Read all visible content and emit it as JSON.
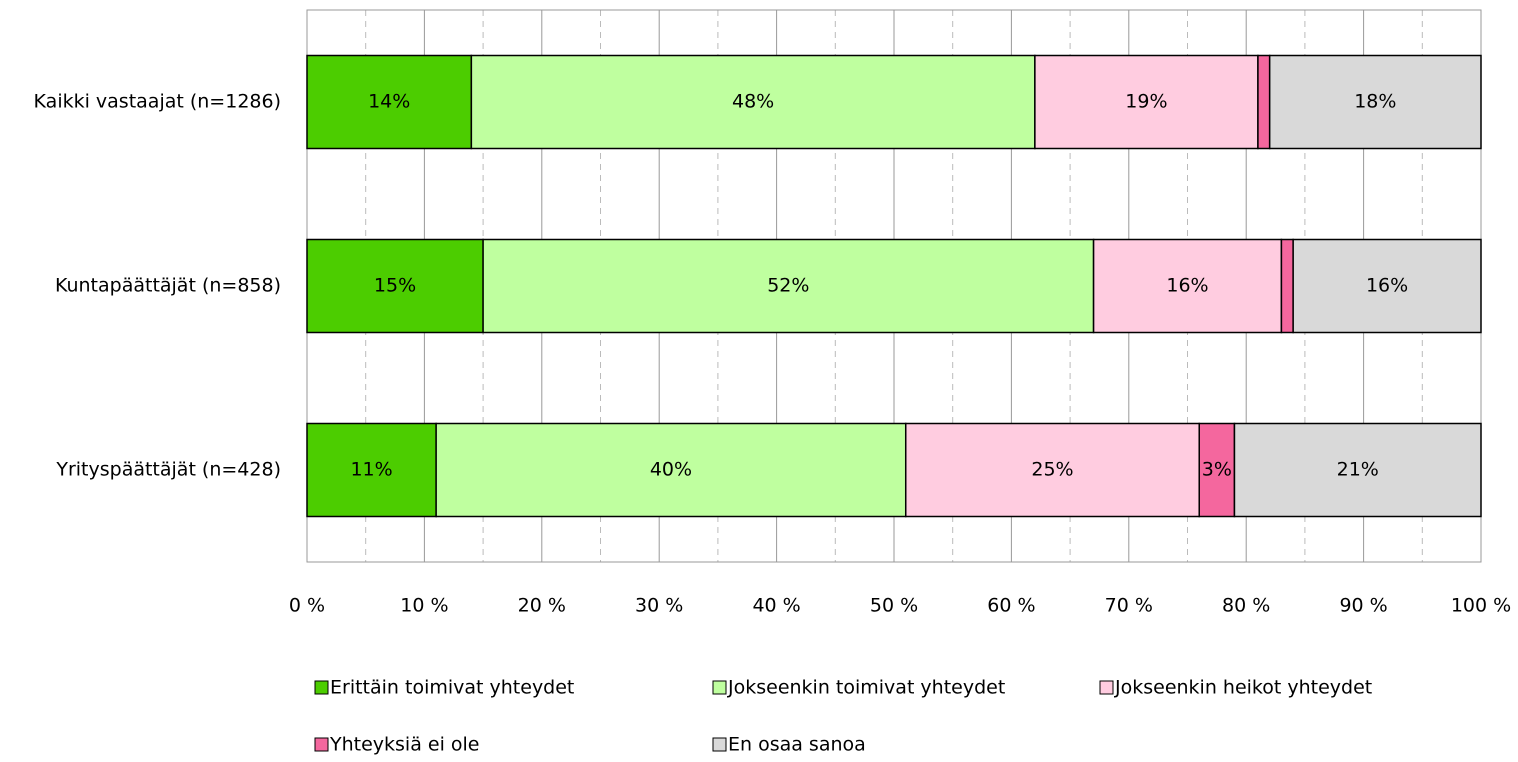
{
  "chart_data": {
    "type": "stacked_barh",
    "categories": [
      "Kaikki vastaajat (n=1286)",
      "Kuntapäättäjät (n=858)",
      "Yrityspäättäjät (n=428)"
    ],
    "series": [
      {
        "name": "Erittäin toimivat yhteydet",
        "color": "#4ccd00",
        "values": [
          14,
          15,
          11
        ],
        "value_labels": [
          "14%",
          "15%",
          "11%"
        ]
      },
      {
        "name": "Jokseenkin toimivat yhteydet",
        "color": "#bfff9f",
        "values": [
          48,
          52,
          40
        ],
        "value_labels": [
          "48%",
          "52%",
          "40%"
        ]
      },
      {
        "name": "Jokseenkin heikot yhteydet",
        "color": "#ffcce0",
        "values": [
          19,
          16,
          25
        ],
        "value_labels": [
          "19%",
          "16%",
          "25%"
        ]
      },
      {
        "name": "Yhteyksiä ei ole",
        "color": "#f4679e",
        "values": [
          1,
          1,
          3
        ],
        "value_labels": [
          null,
          null,
          "3%"
        ]
      },
      {
        "name": "En osaa sanoa",
        "color": "#d9d9d9",
        "values": [
          18,
          16,
          21
        ],
        "value_labels": [
          "18%",
          "16%",
          "21%"
        ]
      }
    ],
    "xlim": [
      0,
      100
    ],
    "xticks": [
      {
        "value": 0,
        "label": "0 %"
      },
      {
        "value": 10,
        "label": "10 %"
      },
      {
        "value": 20,
        "label": "20 %"
      },
      {
        "value": 30,
        "label": "30 %"
      },
      {
        "value": 40,
        "label": "40 %"
      },
      {
        "value": 50,
        "label": "50 %"
      },
      {
        "value": 60,
        "label": "60 %"
      },
      {
        "value": 70,
        "label": "70 %"
      },
      {
        "value": 80,
        "label": "80 %"
      },
      {
        "value": 90,
        "label": "90 %"
      },
      {
        "value": 100,
        "label": "100 %"
      }
    ],
    "xminorticks": [
      5,
      15,
      25,
      35,
      45,
      55,
      65,
      75,
      85,
      95
    ],
    "grid": true
  }
}
